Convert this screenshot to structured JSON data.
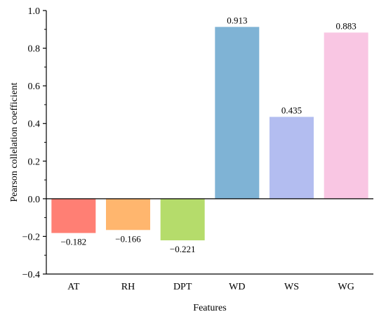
{
  "chart_data": {
    "type": "bar",
    "categories": [
      "AT",
      "RH",
      "DPT",
      "WD",
      "WS",
      "WG"
    ],
    "values": [
      -0.182,
      -0.166,
      -0.221,
      0.913,
      0.435,
      0.883
    ],
    "value_labels": [
      "−0.182",
      "−0.166",
      "−0.221",
      "0.913",
      "0.435",
      "0.883"
    ],
    "colors": [
      "#ff7f74",
      "#ffb66e",
      "#b5dc6b",
      "#7fb3d5",
      "#b3bdf0",
      "#f9c6e3"
    ],
    "xlabel": "Features",
    "ylabel": "Pearson collelation coefficient",
    "ylim": [
      -0.4,
      1.0
    ],
    "yticks": [
      -0.4,
      -0.2,
      0.0,
      0.2,
      0.4,
      0.6,
      0.8,
      1.0
    ],
    "ytick_labels": [
      "−0.4",
      "−0.2",
      "0.0",
      "0.2",
      "0.4",
      "0.6",
      "0.8",
      "1.0"
    ],
    "grid": false,
    "legend": "none"
  }
}
